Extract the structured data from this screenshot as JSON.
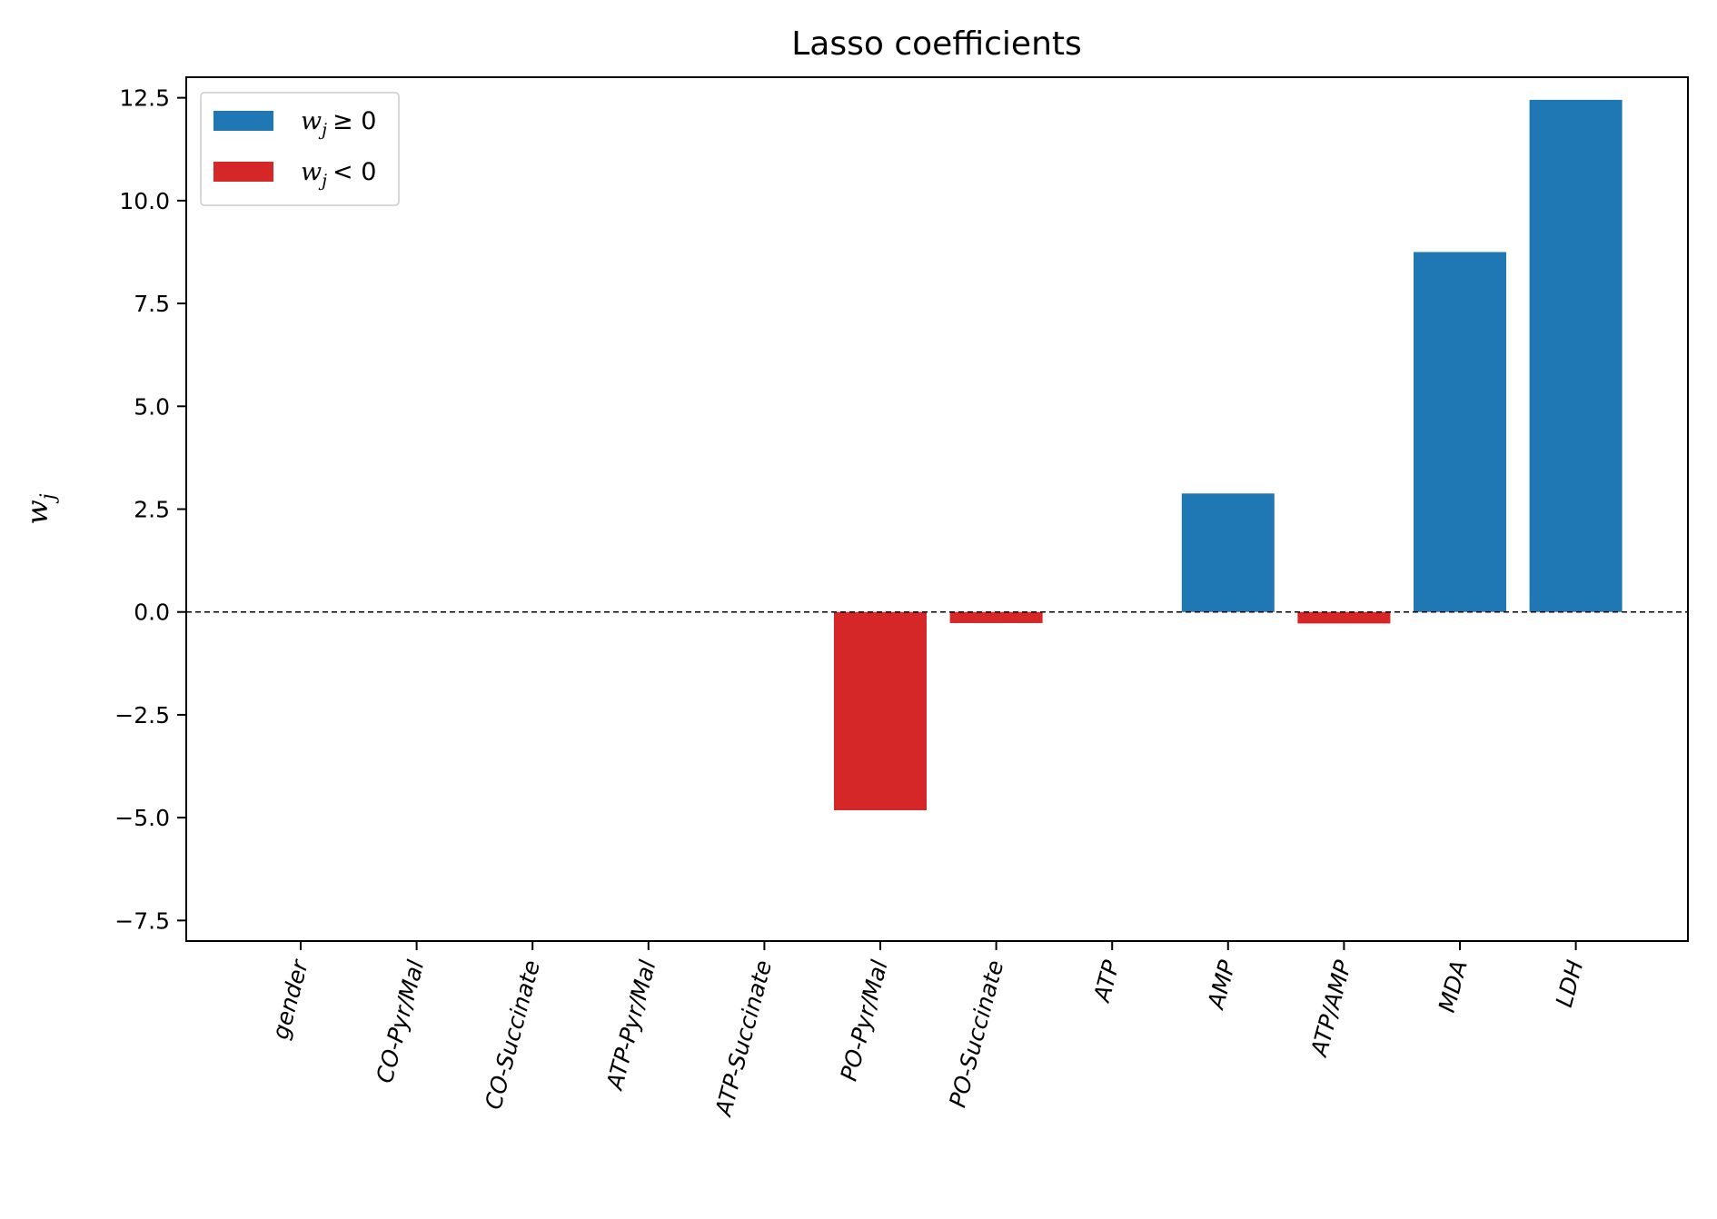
{
  "chart_data": {
    "type": "bar",
    "title": "Lasso coefficients",
    "ylabel": "w",
    "ylabel_subscript": "j",
    "xlabel": "",
    "ylim": [
      -8.0,
      13.0
    ],
    "yticks": [
      12.5,
      10.0,
      7.5,
      5.0,
      2.5,
      0.0,
      -2.5,
      -5.0,
      -7.5
    ],
    "ytick_labels": [
      "12.5",
      "10.0",
      "7.5",
      "5.0",
      "2.5",
      "0.0",
      "−2.5",
      "−5.0",
      "−7.5"
    ],
    "categories": [
      "gender",
      "CO-Pyr/Mal",
      "CO-Succinate",
      "ATP-Pyr/Mal",
      "ATP-Succinate",
      "PO-Pyr/Mal",
      "PO-Succinate",
      "ATP",
      "AMP",
      "ATP/AMP",
      "MDA",
      "LDH"
    ],
    "values": [
      0,
      0,
      0,
      0,
      0,
      -4.82,
      -0.27,
      0,
      2.88,
      -0.28,
      8.75,
      12.45
    ],
    "zero_line": "dashed",
    "grid": false,
    "legend": {
      "placement": "top-left",
      "entries": [
        {
          "var": "w",
          "sub": "j",
          "rel": "≥ 0",
          "color": "#1f77b4"
        },
        {
          "var": "w",
          "sub": "j",
          "rel": "< 0",
          "color": "#d62728"
        }
      ]
    },
    "colors": {
      "positive": "#1f77b4",
      "negative": "#d62728"
    }
  }
}
